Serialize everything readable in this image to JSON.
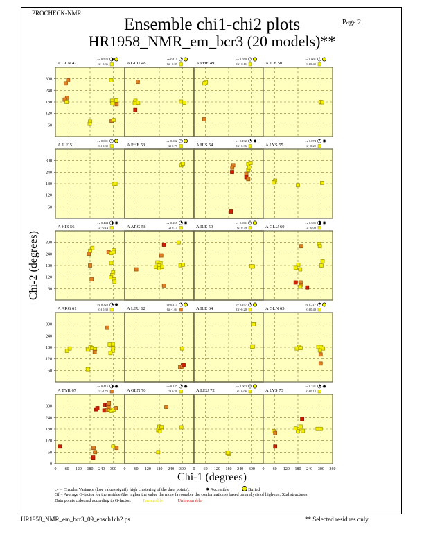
{
  "header": {
    "program": "PROCHECK-NMR",
    "page": "Page  2",
    "title": "Ensemble chi1-chi2 plots",
    "subtitle": "HR1958_NMR_em_bcr3 (20 models)**"
  },
  "footer": {
    "filename": "HR1958_NMR_em_bcr3_09_ensch1ch2.ps",
    "note": "** Selected residues only"
  },
  "legend": {
    "cv_text": "cv = Circular Variance (low values signify high clustering of the data points).",
    "accessible": "Accessible",
    "buried": "Buried",
    "gf_text": "Gf = Average G-factor for the residue (the higher the value the more favourable the conformations) based on analysis of high-res. Xtal structures",
    "colour_text": "Data points coloured according to G-factor:",
    "favourable": "Favourable",
    "unfavourable": "Unfavourable"
  },
  "colors": {
    "panel_bg": "#ffffc0",
    "grid": "#8a7a30",
    "favourable": "#f0f000",
    "medium": "#e08020",
    "unfavourable": "#d02000",
    "fav_text": "#e8e000",
    "unfav_text": "#e02020"
  },
  "chart_data": {
    "type": "scatter",
    "xlabel": "Chi-1 (degrees)",
    "ylabel": "Chi-2 (degrees)",
    "xlim": [
      0,
      360
    ],
    "ylim": [
      0,
      360
    ],
    "xticks": [
      "0",
      "60",
      "120",
      "180",
      "240",
      "300",
      "360"
    ],
    "yticks": [
      "60",
      "120",
      "180",
      "240",
      "300"
    ],
    "bottom_yticks": [
      "0",
      "60",
      "120",
      "180",
      "240",
      "300"
    ],
    "grid": true,
    "panels": [
      {
        "label": "A GLN 47",
        "cv": "cv 0.523",
        "cvv": 0.523,
        "gf": "Gf -0.36",
        "gfc": "f",
        "acc": "buried",
        "points": [
          [
            66,
            292,
            "m"
          ],
          [
            54,
            276,
            "m"
          ],
          [
            60,
            202,
            "m"
          ],
          [
            48,
            192,
            "m"
          ],
          [
            58,
            180,
            "f"
          ],
          [
            290,
            292,
            "f"
          ],
          [
            294,
            186,
            "f"
          ],
          [
            296,
            172,
            "f"
          ],
          [
            316,
            188,
            "f"
          ],
          [
            318,
            168,
            "m"
          ],
          [
            180,
            78,
            "f"
          ],
          [
            178,
            66,
            "f"
          ],
          [
            292,
            82,
            "m"
          ],
          [
            302,
            86,
            "f"
          ]
        ]
      },
      {
        "label": "A GLU 48",
        "cv": "cv 0.111",
        "cvv": 0.111,
        "gf": "Gf -0.39",
        "gfc": "f",
        "acc": "buried",
        "points": [
          [
            68,
            284,
            "m"
          ],
          [
            54,
            180,
            "f"
          ],
          [
            56,
            186,
            "f"
          ],
          [
            52,
            174,
            "f"
          ],
          [
            70,
            176,
            "f"
          ],
          [
            55,
            138,
            "u"
          ],
          [
            293,
            182,
            "f"
          ],
          [
            310,
            176,
            "f"
          ]
        ]
      },
      {
        "label": "A PHE 49",
        "cv": "cv 0.050",
        "cvv": 0.05,
        "gf": "Gf -0.11",
        "gfc": "f",
        "acc": "buried",
        "points": [
          [
            58,
            278,
            "f"
          ],
          [
            62,
            282,
            "f"
          ],
          [
            54,
            276,
            "f"
          ],
          [
            53,
            90,
            "m"
          ]
        ]
      },
      {
        "label": "A ILE 50",
        "cv": "cv 0.001",
        "cvv": 0.001,
        "gf": "Gf 0.42",
        "gfc": "f",
        "acc": "buried",
        "points": [
          [
            302,
            178,
            "f"
          ],
          [
            298,
            180,
            "f"
          ],
          [
            306,
            178,
            "f"
          ]
        ]
      },
      {
        "label": "A ILE 51",
        "cv": "cv 0.001",
        "cvv": 0.001,
        "gf": "Gf 0.30",
        "gfc": "f",
        "acc": "buried",
        "points": [
          [
            308,
            180,
            "f"
          ],
          [
            304,
            178,
            "f"
          ],
          [
            312,
            180,
            "f"
          ]
        ]
      },
      {
        "label": "A PHE 53",
        "cv": "cv 0.002",
        "cvv": 0.002,
        "gf": "Gf 0.79",
        "gfc": "f",
        "acc": "buried",
        "points": [
          [
            298,
            280,
            "f"
          ],
          [
            294,
            276,
            "f"
          ],
          [
            302,
            284,
            "f"
          ]
        ]
      },
      {
        "label": "A HIS 54",
        "cv": "cv 0.192",
        "cvv": 0.192,
        "gf": "Gf -0.36",
        "gfc": "f",
        "acc": "accessible",
        "points": [
          [
            204,
            276,
            "m"
          ],
          [
            199,
            264,
            "m"
          ],
          [
            198,
            241,
            "u"
          ],
          [
            272,
            232,
            "m"
          ],
          [
            272,
            214,
            "u"
          ],
          [
            282,
            204,
            "m"
          ],
          [
            282,
            252,
            "f"
          ],
          [
            282,
            282,
            "f"
          ],
          [
            294,
            288,
            "f"
          ],
          [
            288,
            264,
            "f"
          ],
          [
            192,
            36,
            "u"
          ]
        ]
      },
      {
        "label": "A LYS 55",
        "cv": "cv 0.074",
        "cvv": 0.074,
        "gf": "Gf -0.20",
        "gfc": "f",
        "acc": "accessible",
        "points": [
          [
            58,
            190,
            "f"
          ],
          [
            62,
            196,
            "f"
          ],
          [
            54,
            186,
            "f"
          ],
          [
            180,
            172,
            "f"
          ],
          [
            306,
            184,
            "f"
          ]
        ]
      },
      {
        "label": "A HIS 56",
        "cv": "cv 0.444",
        "cvv": 0.444,
        "gf": "Gf -0.14",
        "gfc": "f",
        "acc": "accessible",
        "points": [
          [
            192,
            271,
            "f"
          ],
          [
            180,
            256,
            "f"
          ],
          [
            174,
            240,
            "m"
          ],
          [
            180,
            180,
            "m"
          ],
          [
            188,
            108,
            "m"
          ],
          [
            276,
            250,
            "m"
          ],
          [
            290,
            244,
            "f"
          ],
          [
            302,
            259,
            "f"
          ],
          [
            302,
            250,
            "f"
          ],
          [
            290,
            193,
            "f"
          ],
          [
            300,
            145,
            "f"
          ],
          [
            295,
            130,
            "f"
          ],
          [
            288,
            118,
            "f"
          ],
          [
            304,
            108,
            "f"
          ],
          [
            307,
            96,
            "f"
          ]
        ]
      },
      {
        "label": "A ARG 58",
        "cv": "cv 0.255",
        "cvv": 0.255,
        "gf": "Gf 0.15",
        "gfc": "f",
        "acc": "accessible",
        "points": [
          [
            60,
            160,
            "m"
          ],
          [
            204,
            288,
            "u"
          ],
          [
            190,
            232,
            "m"
          ],
          [
            280,
            300,
            "f"
          ],
          [
            170,
            196,
            "f"
          ],
          [
            186,
            192,
            "f"
          ],
          [
            178,
            180,
            "f"
          ],
          [
            162,
            172,
            "f"
          ],
          [
            180,
            166,
            "f"
          ],
          [
            194,
            172,
            "f"
          ],
          [
            290,
            181,
            "f"
          ],
          [
            302,
            184,
            "f"
          ],
          [
            204,
            76,
            "m"
          ]
        ]
      },
      {
        "label": "A ILE 59",
        "cv": "cv 0.001",
        "cvv": 0.001,
        "gf": "Gf 0.79",
        "gfc": "f",
        "acc": "buried",
        "points": [
          [
            302,
            175,
            "f"
          ],
          [
            298,
            176,
            "f"
          ],
          [
            306,
            175,
            "f"
          ]
        ]
      },
      {
        "label": "A GLU 60",
        "cv": "cv 0.505",
        "cvv": 0.505,
        "gf": "Gf -0.09",
        "gfc": "f",
        "acc": "accessible",
        "points": [
          [
            198,
            280,
            "m"
          ],
          [
            290,
            292,
            "f"
          ],
          [
            294,
            280,
            "f"
          ],
          [
            308,
            202,
            "f"
          ],
          [
            302,
            180,
            "f"
          ],
          [
            182,
            184,
            "f"
          ],
          [
            168,
            168,
            "f"
          ],
          [
            192,
            160,
            "f"
          ],
          [
            168,
            92,
            "u"
          ],
          [
            194,
            92,
            "m"
          ],
          [
            198,
            80,
            "m"
          ],
          [
            192,
            70,
            "f"
          ],
          [
            228,
            66,
            "u"
          ]
        ]
      },
      {
        "label": "A ARG 61",
        "cv": "cv 0.328",
        "cvv": 0.328,
        "gf": "Gf 0.30",
        "gfc": "f",
        "acc": "accessible",
        "points": [
          [
            60,
            162,
            "f"
          ],
          [
            74,
            174,
            "f"
          ],
          [
            270,
            282,
            "m"
          ],
          [
            282,
            194,
            "f"
          ],
          [
            298,
            196,
            "f"
          ],
          [
            300,
            176,
            "f"
          ],
          [
            298,
            162,
            "f"
          ],
          [
            286,
            150,
            "f"
          ],
          [
            168,
            168,
            "f"
          ],
          [
            182,
            180,
            "f"
          ],
          [
            190,
            176,
            "f"
          ],
          [
            206,
            170,
            "f"
          ],
          [
            204,
            156,
            "m"
          ],
          [
            168,
            66,
            "f"
          ]
        ]
      },
      {
        "label": "A LEU 62",
        "cv": "cv 0.114",
        "cvv": 0.114,
        "gf": "Gf -1.04",
        "gfc": "m",
        "acc": "buried",
        "points": [
          [
            298,
            174,
            "f"
          ],
          [
            302,
            86,
            "u"
          ],
          [
            288,
            77,
            "m"
          ],
          [
            298,
            80,
            "m"
          ],
          [
            306,
            88,
            "u"
          ]
        ]
      },
      {
        "label": "A ILE 64",
        "cv": "cv 0.197",
        "cvv": 0.197,
        "gf": "Gf -0.20",
        "gfc": "f",
        "acc": "buried",
        "points": [
          [
            314,
            299,
            "f"
          ],
          [
            310,
            299,
            "f"
          ],
          [
            307,
            185,
            "f"
          ],
          [
            303,
            183,
            "f"
          ]
        ]
      },
      {
        "label": "A GLN 65",
        "cv": "cv 0.217",
        "cvv": 0.217,
        "gf": "Gf 0.49",
        "gfc": "f",
        "acc": "buried",
        "points": [
          [
            186,
            182,
            "f"
          ],
          [
            174,
            174,
            "f"
          ],
          [
            194,
            176,
            "f"
          ],
          [
            286,
            182,
            "f"
          ],
          [
            300,
            182,
            "f"
          ],
          [
            310,
            174,
            "f"
          ],
          [
            294,
            164,
            "f"
          ],
          [
            298,
            143,
            "m"
          ],
          [
            298,
            96,
            "m"
          ]
        ]
      },
      {
        "label": "A TYR 67",
        "cv": "cv 0.416",
        "cvv": 0.416,
        "gf": "Gf -1.73",
        "gfc": "m",
        "acc": "accessible",
        "points": [
          [
            22,
            89,
            "u"
          ],
          [
            211,
            282,
            "u"
          ],
          [
            218,
            288,
            "u"
          ],
          [
            256,
            306,
            "u"
          ],
          [
            270,
            306,
            "u"
          ],
          [
            278,
            314,
            "m"
          ],
          [
            254,
            276,
            "u"
          ],
          [
            270,
            279,
            "m"
          ],
          [
            282,
            282,
            "f"
          ],
          [
            290,
            274,
            "f"
          ],
          [
            302,
            280,
            "f"
          ],
          [
            314,
            288,
            "m"
          ],
          [
            276,
            294,
            "m"
          ],
          [
            198,
            82,
            "m"
          ],
          [
            206,
            60,
            "m"
          ],
          [
            196,
            32,
            "u"
          ],
          [
            300,
            89,
            "f"
          ],
          [
            318,
            82,
            "m"
          ]
        ]
      },
      {
        "label": "A GLN 70",
        "cv": "cv 0.147",
        "cvv": 0.147,
        "gf": "Gf 0.39",
        "gfc": "f",
        "acc": "accessible",
        "points": [
          [
            216,
            295,
            "m"
          ],
          [
            180,
            193,
            "f"
          ],
          [
            190,
            183,
            "f"
          ],
          [
            174,
            175,
            "f"
          ],
          [
            182,
            169,
            "f"
          ],
          [
            192,
            190,
            "f"
          ],
          [
            294,
            189,
            "f"
          ],
          [
            174,
            60,
            "f"
          ]
        ]
      },
      {
        "label": "A LEU 72",
        "cv": "cv 0.002",
        "cvv": 0.002,
        "gf": "Gf 0.06",
        "gfc": "f",
        "acc": "buried",
        "points": [
          [
            174,
            56,
            "f"
          ],
          [
            180,
            50,
            "f"
          ],
          [
            178,
            58,
            "f"
          ]
        ]
      },
      {
        "label": "A LYS 73",
        "cv": "cv 0.241",
        "cvv": 0.241,
        "gf": "Gf 0.12",
        "gfc": "f",
        "acc": "accessible",
        "points": [
          [
            54,
            169,
            "f"
          ],
          [
            62,
            160,
            "m"
          ],
          [
            62,
            89,
            "u"
          ],
          [
            202,
            232,
            "u"
          ],
          [
            186,
            181,
            "f"
          ],
          [
            194,
            193,
            "f"
          ],
          [
            180,
            169,
            "f"
          ],
          [
            206,
            171,
            "f"
          ],
          [
            168,
            183,
            "f"
          ],
          [
            282,
            181,
            "f"
          ],
          [
            298,
            181,
            "f"
          ]
        ]
      }
    ]
  }
}
